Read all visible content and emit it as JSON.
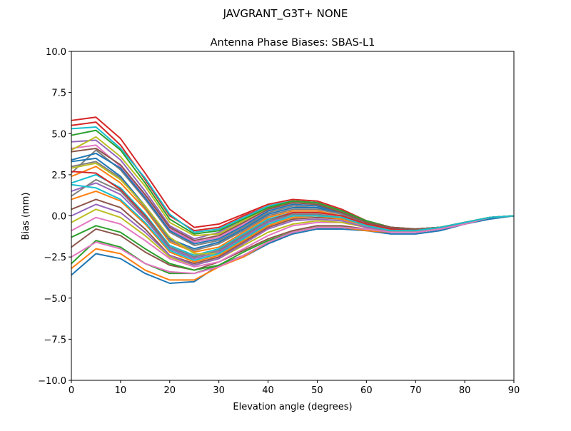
{
  "chart_data": {
    "type": "line",
    "suptitle": "JAVGRANT_G3T+   NONE",
    "title": "Antenna Phase Biases: SBAS-L1",
    "xlabel": "Elevation angle (degrees)",
    "ylabel": "Bias (mm)",
    "xlim": [
      0,
      90
    ],
    "ylim": [
      -10,
      10
    ],
    "xticks": [
      0,
      10,
      20,
      30,
      40,
      50,
      60,
      70,
      80,
      90
    ],
    "yticks": [
      10.0,
      7.5,
      5.0,
      2.5,
      0.0,
      -2.5,
      -5.0,
      -7.5,
      -10.0
    ],
    "ytick_labels": [
      "10.0",
      "7.5",
      "5.0",
      "2.5",
      "0.0",
      "−2.5",
      "−5.0",
      "−7.5",
      "−10.0"
    ],
    "grid": false,
    "colors": [
      "#1f77b4",
      "#ff7f0e",
      "#2ca02c",
      "#d62728",
      "#9467bd",
      "#8c564b",
      "#e377c2",
      "#7f7f7f",
      "#bcbd22",
      "#17becf"
    ],
    "x": [
      0,
      5,
      10,
      15,
      20,
      25,
      30,
      35,
      40,
      45,
      50,
      55,
      60,
      65,
      70,
      75,
      80,
      85,
      90
    ],
    "series": [
      {
        "values": [
          -3.6,
          -2.3,
          -2.6,
          -3.5,
          -4.1,
          -4.0,
          -3.0,
          -2.5,
          -1.7,
          -1.1,
          -0.8,
          -0.8,
          -0.9,
          -1.1,
          -1.1,
          -0.9,
          -0.5,
          -0.2,
          0.0
        ]
      },
      {
        "values": [
          -3.2,
          -2.0,
          -2.3,
          -3.3,
          -3.9,
          -3.9,
          -3.1,
          -2.5,
          -1.6,
          -1.0,
          -0.7,
          -0.7,
          -0.9,
          -1.0,
          -1.0,
          -0.8,
          -0.5,
          -0.1,
          0.0
        ]
      },
      {
        "values": [
          -2.9,
          -1.5,
          -1.9,
          -2.9,
          -3.5,
          -3.5,
          -3.0,
          -2.4,
          -1.6,
          -1.0,
          -0.7,
          -0.7,
          -0.8,
          -1.0,
          -1.0,
          -0.8,
          -0.5,
          -0.1,
          0.0
        ]
      },
      {
        "values": [
          5.5,
          5.7,
          4.3,
          2.2,
          0.0,
          -0.9,
          -0.7,
          0.0,
          0.6,
          0.9,
          0.8,
          0.3,
          -0.3,
          -0.7,
          -0.8,
          -0.7,
          -0.4,
          -0.1,
          0.0
        ]
      },
      {
        "values": [
          4.5,
          4.6,
          3.4,
          1.5,
          -0.6,
          -1.4,
          -1.0,
          -0.2,
          0.5,
          0.8,
          0.7,
          0.3,
          -0.4,
          -0.7,
          -0.8,
          -0.7,
          -0.4,
          -0.1,
          0.0
        ]
      },
      {
        "values": [
          -1.9,
          -0.8,
          -1.2,
          -2.2,
          -3.0,
          -3.3,
          -2.8,
          -2.1,
          -1.4,
          -0.9,
          -0.6,
          -0.6,
          -0.8,
          -1.0,
          -1.0,
          -0.8,
          -0.5,
          -0.1,
          0.0
        ]
      },
      {
        "values": [
          4.1,
          4.3,
          3.0,
          1.2,
          -0.8,
          -1.6,
          -1.3,
          -0.5,
          0.3,
          0.7,
          0.6,
          0.2,
          -0.4,
          -0.8,
          -0.8,
          -0.7,
          -0.4,
          -0.1,
          0.0
        ]
      },
      {
        "values": [
          2.6,
          4.0,
          2.8,
          1.0,
          -1.0,
          -1.8,
          -1.5,
          -0.7,
          0.2,
          0.6,
          0.5,
          0.2,
          -0.4,
          -0.8,
          -0.8,
          -0.7,
          -0.4,
          -0.1,
          0.0
        ]
      },
      {
        "values": [
          4.0,
          4.8,
          3.6,
          1.8,
          -0.4,
          -1.2,
          -1.1,
          -0.3,
          0.5,
          0.8,
          0.7,
          0.3,
          -0.4,
          -0.7,
          -0.8,
          -0.7,
          -0.4,
          -0.1,
          0.0
        ]
      },
      {
        "values": [
          5.3,
          5.4,
          4.1,
          2.3,
          0.1,
          -1.0,
          -0.8,
          -0.1,
          0.6,
          0.9,
          0.8,
          0.3,
          -0.3,
          -0.7,
          -0.8,
          -0.7,
          -0.4,
          -0.1,
          0.0
        ]
      },
      {
        "values": [
          3.3,
          3.5,
          2.4,
          0.6,
          -1.4,
          -2.0,
          -1.6,
          -0.8,
          0.1,
          0.5,
          0.5,
          0.1,
          -0.5,
          -0.8,
          -0.9,
          -0.7,
          -0.4,
          -0.1,
          0.0
        ]
      },
      {
        "values": [
          2.4,
          3.0,
          2.0,
          0.4,
          -1.6,
          -2.2,
          -1.9,
          -1.0,
          -0.1,
          0.3,
          0.3,
          0.0,
          -0.5,
          -0.8,
          -0.9,
          -0.7,
          -0.4,
          -0.1,
          0.0
        ]
      },
      {
        "values": [
          -1.3,
          -0.6,
          -1.0,
          -2.0,
          -2.9,
          -3.3,
          -3.0,
          -2.2,
          -1.5,
          -1.0,
          -0.7,
          -0.7,
          -0.8,
          -1.0,
          -1.0,
          -0.8,
          -0.5,
          -0.1,
          0.0
        ]
      },
      {
        "values": [
          5.8,
          6.0,
          4.7,
          2.6,
          0.4,
          -0.7,
          -0.5,
          0.1,
          0.7,
          1.0,
          0.9,
          0.4,
          -0.3,
          -0.7,
          -0.8,
          -0.7,
          -0.4,
          -0.1,
          0.0
        ]
      },
      {
        "values": [
          1.5,
          2.0,
          1.3,
          -0.2,
          -2.0,
          -2.6,
          -2.2,
          -1.3,
          -0.4,
          0.1,
          0.1,
          -0.1,
          -0.6,
          -0.9,
          -0.9,
          -0.7,
          -0.4,
          -0.1,
          0.0
        ]
      },
      {
        "values": [
          0.4,
          1.0,
          0.5,
          -0.8,
          -2.4,
          -2.9,
          -2.5,
          -1.6,
          -0.7,
          -0.2,
          -0.1,
          -0.2,
          -0.6,
          -0.9,
          -0.9,
          -0.7,
          -0.4,
          -0.1,
          0.0
        ]
      },
      {
        "values": [
          -0.9,
          -0.1,
          -0.5,
          -1.5,
          -2.6,
          -3.1,
          -2.8,
          -2.0,
          -1.2,
          -0.6,
          -0.4,
          -0.4,
          -0.7,
          -0.9,
          -1.0,
          -0.8,
          -0.5,
          -0.1,
          0.0
        ]
      },
      {
        "values": [
          3.0,
          3.3,
          2.3,
          0.5,
          -1.5,
          -2.1,
          -1.7,
          -0.9,
          0.0,
          0.4,
          0.4,
          0.1,
          -0.5,
          -0.8,
          -0.9,
          -0.7,
          -0.4,
          -0.1,
          0.0
        ]
      },
      {
        "values": [
          -0.4,
          0.4,
          -0.1,
          -1.2,
          -2.5,
          -3.0,
          -2.6,
          -1.8,
          -1.0,
          -0.5,
          -0.3,
          -0.4,
          -0.7,
          -0.9,
          -1.0,
          -0.8,
          -0.5,
          -0.1,
          0.0
        ]
      },
      {
        "values": [
          2.0,
          2.5,
          1.7,
          0.1,
          -1.8,
          -2.4,
          -2.0,
          -1.1,
          -0.2,
          0.2,
          0.2,
          0.0,
          -0.5,
          -0.8,
          -0.9,
          -0.7,
          -0.4,
          -0.1,
          0.0
        ]
      },
      {
        "values": [
          3.4,
          3.8,
          2.9,
          1.1,
          -0.9,
          -1.7,
          -1.4,
          -0.6,
          0.3,
          0.7,
          0.6,
          0.2,
          -0.4,
          -0.8,
          -0.8,
          -0.7,
          -0.4,
          -0.1,
          0.0
        ]
      },
      {
        "values": [
          1.0,
          1.5,
          0.9,
          -0.5,
          -2.2,
          -2.8,
          -2.4,
          -1.5,
          -0.6,
          -0.1,
          0.0,
          -0.2,
          -0.6,
          -0.9,
          -0.9,
          -0.7,
          -0.4,
          -0.1,
          0.0
        ]
      },
      {
        "values": [
          4.9,
          5.2,
          4.0,
          2.0,
          -0.2,
          -1.1,
          -0.9,
          -0.2,
          0.5,
          0.9,
          0.8,
          0.3,
          -0.3,
          -0.7,
          -0.8,
          -0.7,
          -0.4,
          -0.1,
          0.0
        ]
      },
      {
        "values": [
          2.7,
          2.6,
          1.6,
          0.0,
          -1.9,
          -2.5,
          -2.1,
          -1.2,
          -0.3,
          0.2,
          0.2,
          0.0,
          -0.5,
          -0.8,
          -0.9,
          -0.7,
          -0.4,
          -0.1,
          0.0
        ]
      },
      {
        "values": [
          0.0,
          0.7,
          0.2,
          -1.0,
          -2.4,
          -3.0,
          -2.6,
          -1.7,
          -0.8,
          -0.3,
          -0.2,
          -0.3,
          -0.7,
          -0.9,
          -1.0,
          -0.8,
          -0.5,
          -0.1,
          0.0
        ]
      },
      {
        "values": [
          3.9,
          4.1,
          3.1,
          1.3,
          -0.7,
          -1.5,
          -1.2,
          -0.4,
          0.4,
          0.8,
          0.7,
          0.2,
          -0.4,
          -0.7,
          -0.8,
          -0.7,
          -0.4,
          -0.1,
          0.0
        ]
      },
      {
        "values": [
          -2.5,
          -1.6,
          -2.0,
          -2.9,
          -3.4,
          -3.5,
          -3.1,
          -2.4,
          -1.6,
          -1.0,
          -0.7,
          -0.7,
          -0.8,
          -1.0,
          -1.0,
          -0.8,
          -0.5,
          -0.1,
          0.0
        ]
      },
      {
        "values": [
          1.2,
          2.2,
          1.5,
          -0.1,
          -1.9,
          -2.5,
          -2.1,
          -1.2,
          -0.3,
          0.1,
          0.1,
          -0.1,
          -0.6,
          -0.9,
          -0.9,
          -0.7,
          -0.4,
          -0.1,
          0.0
        ]
      },
      {
        "values": [
          2.9,
          3.2,
          2.2,
          0.6,
          -1.3,
          -2.3,
          -2.3,
          -1.4,
          -0.5,
          0.0,
          0.0,
          -0.1,
          -0.6,
          -0.9,
          -0.9,
          -0.7,
          -0.4,
          -0.1,
          0.0
        ]
      },
      {
        "values": [
          1.9,
          1.7,
          1.0,
          -0.4,
          -2.1,
          -2.7,
          -2.3,
          -1.4,
          -0.5,
          0.0,
          0.0,
          -0.1,
          -0.6,
          -0.9,
          -0.9,
          -0.7,
          -0.4,
          -0.1,
          0.0
        ]
      }
    ]
  }
}
